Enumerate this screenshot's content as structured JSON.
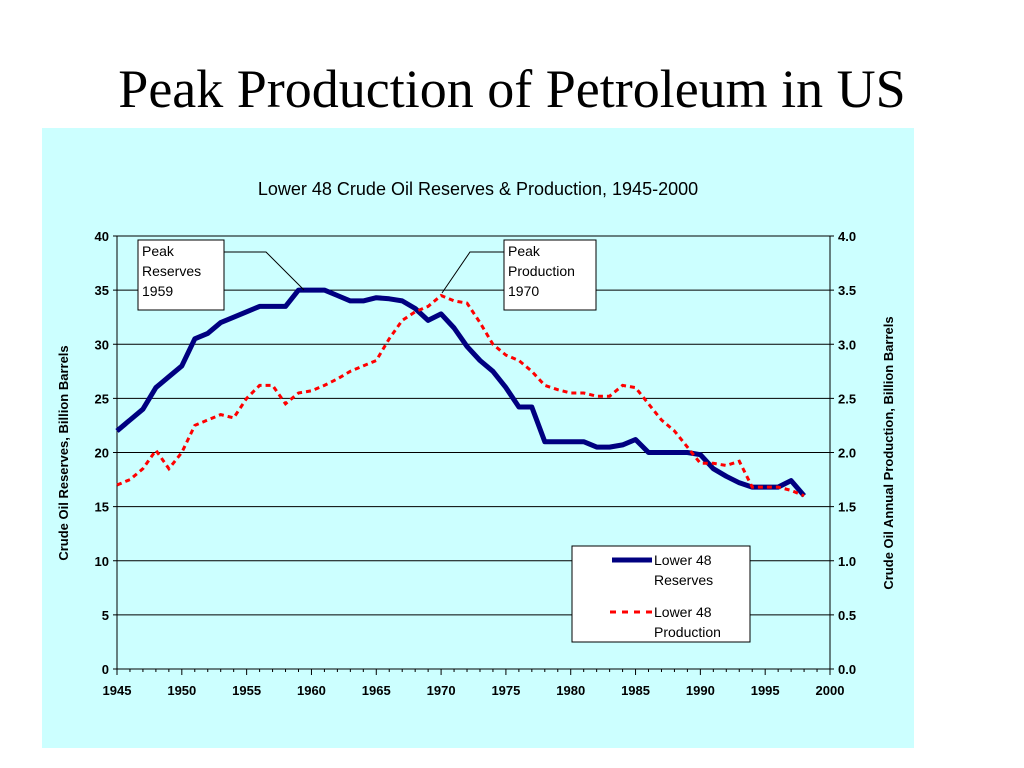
{
  "slide": {
    "title": "Peak Production of Petroleum in US"
  },
  "colors": {
    "panel_bg": "#ccffff",
    "reserves": "#000080",
    "production": "#ff0000"
  },
  "chart_data": {
    "type": "line",
    "title": "Lower 48 Crude Oil Reserves & Production, 1945-2000",
    "xlabel": "",
    "ylabel": "Crude Oil Reserves, Billion Barrels",
    "y2label": "Crude Oil Annual Production, Billion Barrels",
    "xlim": [
      1945,
      2000
    ],
    "ylim": [
      0,
      40
    ],
    "y2lim": [
      0.0,
      4.0
    ],
    "x_ticks": [
      "1945",
      "1950",
      "1955",
      "1960",
      "1965",
      "1970",
      "1975",
      "1980",
      "1985",
      "1990",
      "1995",
      "2000"
    ],
    "y_ticks": [
      "0",
      "5",
      "10",
      "15",
      "20",
      "25",
      "30",
      "35",
      "40"
    ],
    "y2_ticks": [
      "0.0",
      "0.5",
      "1.0",
      "1.5",
      "2.0",
      "2.5",
      "3.0",
      "3.5",
      "4.0"
    ],
    "grid": "horizontal",
    "legend_position": "bottom-right",
    "series": [
      {
        "name": "Lower 48 Reserves",
        "axis": "left",
        "style": "solid",
        "x": [
          1945,
          1946,
          1947,
          1948,
          1949,
          1950,
          1951,
          1952,
          1953,
          1954,
          1955,
          1956,
          1957,
          1958,
          1959,
          1960,
          1961,
          1962,
          1963,
          1964,
          1965,
          1966,
          1967,
          1968,
          1969,
          1970,
          1971,
          1972,
          1973,
          1974,
          1975,
          1976,
          1977,
          1978,
          1979,
          1980,
          1981,
          1982,
          1983,
          1984,
          1985,
          1986,
          1987,
          1988,
          1989,
          1990,
          1991,
          1992,
          1993,
          1994,
          1995,
          1996,
          1997,
          1998
        ],
        "values": [
          22,
          23,
          24,
          26,
          27,
          28,
          30.5,
          31,
          32,
          32.5,
          33,
          33.5,
          33.5,
          33.5,
          35,
          35,
          35,
          34.5,
          34,
          34,
          34.3,
          34.2,
          34,
          33.3,
          32.2,
          32.8,
          31.5,
          29.8,
          28.5,
          27.5,
          26,
          24.2,
          24.2,
          21,
          21,
          21,
          21,
          20.5,
          20.5,
          20.7,
          21.2,
          20,
          20,
          20,
          20,
          19.8,
          18.5,
          17.8,
          17.2,
          16.8,
          16.8,
          16.8,
          17.4,
          16
        ]
      },
      {
        "name": "Lower 48 Production",
        "axis": "right",
        "style": "dashed",
        "x": [
          1945,
          1946,
          1947,
          1948,
          1949,
          1950,
          1951,
          1952,
          1953,
          1954,
          1955,
          1956,
          1957,
          1958,
          1959,
          1960,
          1961,
          1962,
          1963,
          1964,
          1965,
          1966,
          1967,
          1968,
          1969,
          1970,
          1971,
          1972,
          1973,
          1974,
          1975,
          1976,
          1977,
          1978,
          1979,
          1980,
          1981,
          1982,
          1983,
          1984,
          1985,
          1986,
          1987,
          1988,
          1989,
          1990,
          1991,
          1992,
          1993,
          1994,
          1995,
          1996,
          1997,
          1998
        ],
        "values": [
          1.7,
          1.75,
          1.85,
          2.02,
          1.85,
          2.0,
          2.25,
          2.3,
          2.35,
          2.32,
          2.5,
          2.62,
          2.62,
          2.45,
          2.55,
          2.57,
          2.62,
          2.68,
          2.75,
          2.8,
          2.85,
          3.05,
          3.22,
          3.3,
          3.35,
          3.45,
          3.4,
          3.38,
          3.2,
          3.0,
          2.9,
          2.85,
          2.75,
          2.62,
          2.58,
          2.55,
          2.55,
          2.52,
          2.52,
          2.62,
          2.6,
          2.45,
          2.3,
          2.2,
          2.05,
          1.9,
          1.9,
          1.88,
          1.92,
          1.68,
          1.68,
          1.68,
          1.65,
          1.6
        ]
      }
    ],
    "annotations": [
      {
        "lines": [
          "Peak",
          "Reserves",
          "1959"
        ]
      },
      {
        "lines": [
          "Peak",
          "Production",
          "1970"
        ]
      }
    ],
    "legend": [
      {
        "lines": [
          "Lower 48",
          "Reserves"
        ]
      },
      {
        "lines": [
          "Lower 48",
          "Production"
        ]
      }
    ]
  }
}
